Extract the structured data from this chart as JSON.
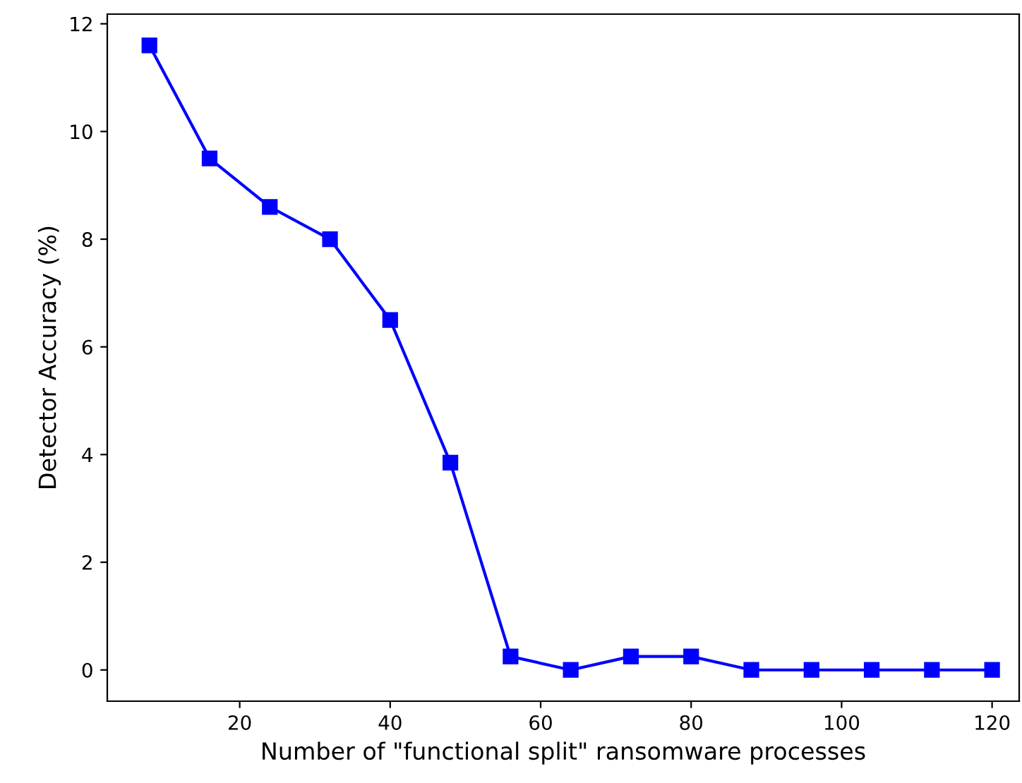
{
  "chart_data": {
    "type": "line",
    "xlabel": "Number of \"functional split\" ransomware processes",
    "ylabel": "Detector Accuracy (%)",
    "x": [
      8,
      16,
      24,
      32,
      40,
      48,
      56,
      64,
      72,
      80,
      88,
      96,
      104,
      112,
      120
    ],
    "series": [
      {
        "color": "#0000ff",
        "values": [
          11.6,
          9.5,
          8.6,
          8.0,
          6.5,
          3.85,
          0.25,
          0,
          0.25,
          0.25,
          0,
          0,
          0,
          0,
          0
        ]
      }
    ],
    "xlim": [
      2.4,
      123.6
    ],
    "ylim": [
      -0.58,
      12.18
    ],
    "xticks": [
      20,
      40,
      60,
      80,
      100,
      120
    ],
    "yticks": [
      0,
      2,
      4,
      6,
      8,
      10,
      12
    ],
    "marker": "square",
    "line_style": "solid",
    "grid": false,
    "legend": false
  }
}
